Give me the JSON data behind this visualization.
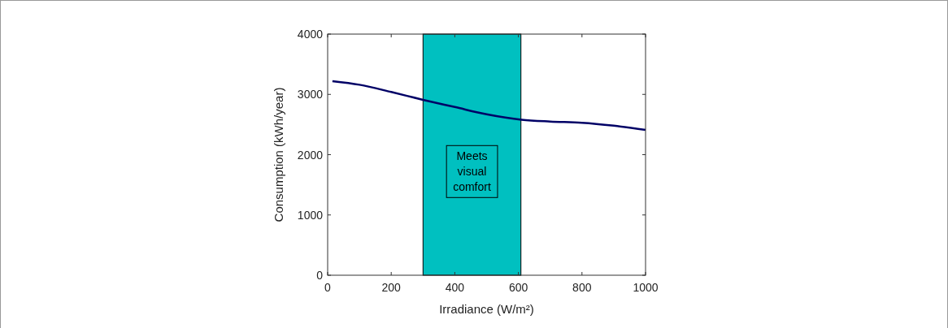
{
  "chart_data": {
    "type": "line",
    "xlabel": "Irradiance (W/m²)",
    "ylabel": "Consumption (kWh/year)",
    "x": [
      15,
      100,
      200,
      300,
      400,
      500,
      610,
      700,
      800,
      900,
      1000
    ],
    "series": [
      {
        "color": "#000066",
        "values": [
          3220,
          3160,
          3040,
          2910,
          2790,
          2670,
          2580,
          2550,
          2530,
          2480,
          2410
        ]
      }
    ],
    "xlim": [
      0,
      1000
    ],
    "xticks": [
      0,
      200,
      400,
      600,
      800,
      1000
    ],
    "ylim": [
      0,
      4000
    ],
    "yticks": [
      0,
      1000,
      2000,
      3000,
      4000
    ],
    "bands": [
      {
        "axis": "x",
        "from": 300,
        "to": 608,
        "label": "Meets\nvisual\ncomfort",
        "color": "#00c0c0"
      }
    ],
    "grid": false,
    "marker": "none",
    "line_style": "solid"
  }
}
